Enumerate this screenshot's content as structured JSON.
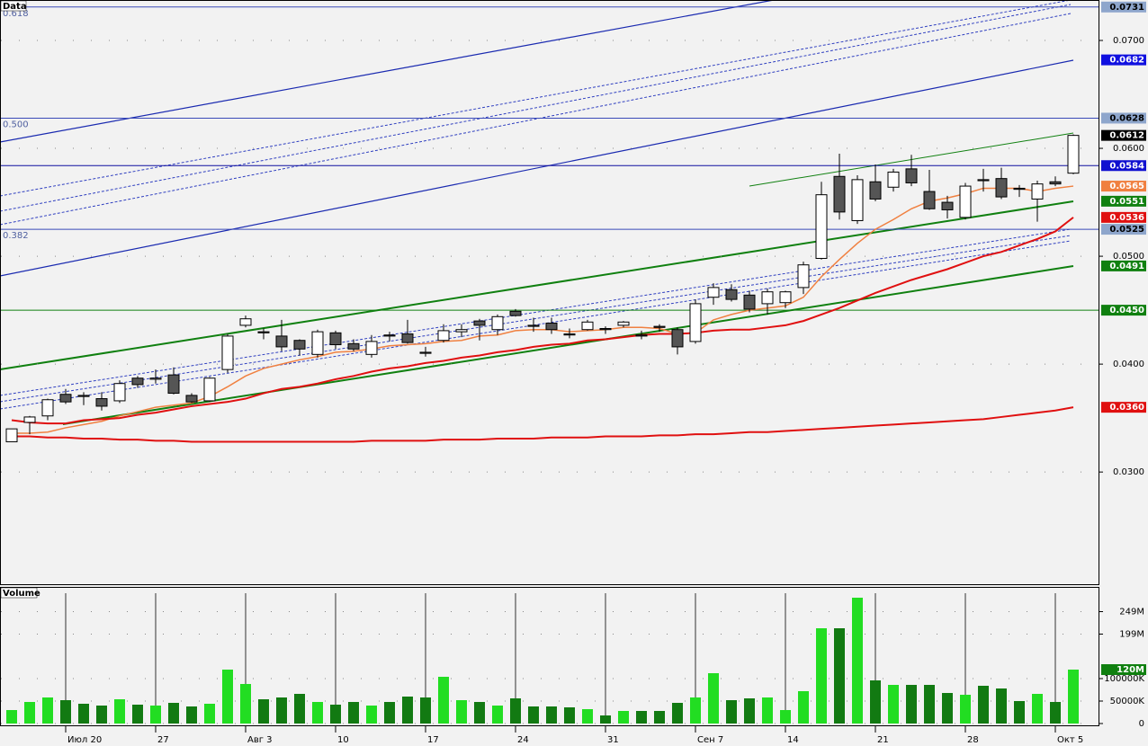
{
  "chart_data": [
    {
      "type": "candlestick",
      "title": "Data",
      "open": [
        0.0328,
        0.0346,
        0.0352,
        0.0372,
        0.0371,
        0.0368,
        0.0366,
        0.0387,
        0.0386,
        0.039,
        0.0371,
        0.0366,
        0.0395,
        0.0436,
        0.043,
        0.0426,
        0.0422,
        0.0409,
        0.0429,
        0.0419,
        0.0409,
        0.0427,
        0.0428,
        0.0411,
        0.0422,
        0.043,
        0.044,
        0.0432,
        0.0449,
        0.0436,
        0.0438,
        0.0428,
        0.0432,
        0.0433,
        0.0436,
        0.0427,
        0.0435,
        0.0432,
        0.0421,
        0.0462,
        0.0469,
        0.0464,
        0.0456,
        0.0457,
        0.0471,
        0.0498,
        0.0574,
        0.0533,
        0.0569,
        0.0564,
        0.0581,
        0.056,
        0.055,
        0.0536,
        0.0571,
        0.0572,
        0.0563,
        0.0553,
        0.0569,
        0.0577
      ],
      "high": [
        0.034,
        0.0352,
        0.0368,
        0.0377,
        0.0374,
        0.0374,
        0.0385,
        0.0389,
        0.0395,
        0.0397,
        0.0373,
        0.0388,
        0.0428,
        0.0445,
        0.0433,
        0.0441,
        0.0423,
        0.0432,
        0.0431,
        0.0423,
        0.0427,
        0.043,
        0.0441,
        0.0416,
        0.0437,
        0.0437,
        0.0442,
        0.0446,
        0.0451,
        0.0443,
        0.0443,
        0.0433,
        0.0441,
        0.0435,
        0.044,
        0.0431,
        0.0437,
        0.0434,
        0.046,
        0.0475,
        0.0474,
        0.0468,
        0.047,
        0.0468,
        0.0495,
        0.0569,
        0.0595,
        0.0575,
        0.0585,
        0.0581,
        0.0594,
        0.058,
        0.0556,
        0.0568,
        0.0581,
        0.0582,
        0.0566,
        0.057,
        0.0574,
        0.0613
      ],
      "low": [
        0.0328,
        0.0335,
        0.0348,
        0.0363,
        0.0362,
        0.0357,
        0.0364,
        0.0378,
        0.0382,
        0.0372,
        0.0364,
        0.0365,
        0.0392,
        0.0434,
        0.0423,
        0.0412,
        0.0408,
        0.0406,
        0.0414,
        0.0412,
        0.0406,
        0.0421,
        0.0419,
        0.0407,
        0.042,
        0.0425,
        0.0422,
        0.0427,
        0.0444,
        0.043,
        0.0428,
        0.0424,
        0.0431,
        0.0428,
        0.0434,
        0.0423,
        0.043,
        0.0409,
        0.0419,
        0.0455,
        0.0458,
        0.0448,
        0.0446,
        0.0452,
        0.0465,
        0.0497,
        0.0534,
        0.053,
        0.0551,
        0.056,
        0.0565,
        0.0543,
        0.0535,
        0.0534,
        0.056,
        0.0553,
        0.0555,
        0.0532,
        0.0565,
        0.0576
      ],
      "close": [
        0.034,
        0.0351,
        0.0367,
        0.0365,
        0.037,
        0.0361,
        0.0382,
        0.0381,
        0.0387,
        0.0373,
        0.0365,
        0.0387,
        0.0426,
        0.0442,
        0.0429,
        0.0416,
        0.0414,
        0.043,
        0.0418,
        0.0414,
        0.0421,
        0.0426,
        0.042,
        0.041,
        0.0431,
        0.0432,
        0.0436,
        0.0444,
        0.0445,
        0.0435,
        0.0432,
        0.0427,
        0.0439,
        0.0432,
        0.0439,
        0.0426,
        0.0434,
        0.0416,
        0.0456,
        0.0471,
        0.046,
        0.0451,
        0.0467,
        0.0467,
        0.0492,
        0.0557,
        0.0541,
        0.0571,
        0.0553,
        0.0578,
        0.0568,
        0.0544,
        0.0543,
        0.0565,
        0.057,
        0.0555,
        0.0562,
        0.0567,
        0.0567,
        0.0612
      ],
      "up_color": "#ffffff",
      "down_color": "#555555",
      "averages": [
        {
          "color": "#f08040",
          "values": [
            0.0336,
            0.0336,
            0.0337,
            0.0341,
            0.0344,
            0.0347,
            0.0352,
            0.0356,
            0.036,
            0.0362,
            0.0364,
            0.037,
            0.0379,
            0.0389,
            0.0396,
            0.04,
            0.0404,
            0.0407,
            0.0411,
            0.0412,
            0.0414,
            0.0417,
            0.0418,
            0.0419,
            0.0421,
            0.0422,
            0.0426,
            0.0427,
            0.0431,
            0.0432,
            0.0432,
            0.043,
            0.0431,
            0.0432,
            0.0434,
            0.0434,
            0.0433,
            0.0428,
            0.0429,
            0.0441,
            0.0446,
            0.045,
            0.0452,
            0.0454,
            0.0462,
            0.0481,
            0.0497,
            0.0512,
            0.0525,
            0.0534,
            0.0544,
            0.0551,
            0.0554,
            0.0558,
            0.0563,
            0.0563,
            0.0563,
            0.056,
            0.0563,
            0.0565
          ]
        },
        {
          "color": "#e01010",
          "values": [
            0.0348,
            0.0346,
            0.0345,
            0.0345,
            0.0348,
            0.0349,
            0.035,
            0.0353,
            0.0355,
            0.0358,
            0.0361,
            0.0363,
            0.0365,
            0.0368,
            0.0373,
            0.0377,
            0.0379,
            0.0382,
            0.0386,
            0.0389,
            0.0393,
            0.0396,
            0.0398,
            0.0401,
            0.0403,
            0.0406,
            0.0408,
            0.0411,
            0.0413,
            0.0416,
            0.0418,
            0.0419,
            0.0422,
            0.0423,
            0.0425,
            0.0427,
            0.0428,
            0.0428,
            0.0429,
            0.0431,
            0.0432,
            0.0432,
            0.0434,
            0.0436,
            0.044,
            0.0446,
            0.0452,
            0.0459,
            0.0466,
            0.0472,
            0.0478,
            0.0483,
            0.0488,
            0.0494,
            0.05,
            0.0504,
            0.051,
            0.0516,
            0.0523,
            0.0536
          ]
        },
        {
          "color": "#e01010",
          "values": [
            0.0333,
            0.0333,
            0.0332,
            0.0332,
            0.0331,
            0.0331,
            0.033,
            0.033,
            0.0329,
            0.0329,
            0.0328,
            0.0328,
            0.0328,
            0.0328,
            0.0328,
            0.0328,
            0.0328,
            0.0328,
            0.0328,
            0.0328,
            0.0329,
            0.0329,
            0.0329,
            0.0329,
            0.033,
            0.033,
            0.033,
            0.0331,
            0.0331,
            0.0331,
            0.0332,
            0.0332,
            0.0332,
            0.0333,
            0.0333,
            0.0333,
            0.0334,
            0.0334,
            0.0335,
            0.0335,
            0.0336,
            0.0337,
            0.0337,
            0.0338,
            0.0339,
            0.034,
            0.0341,
            0.0342,
            0.0343,
            0.0344,
            0.0345,
            0.0346,
            0.0347,
            0.0348,
            0.0349,
            0.0351,
            0.0353,
            0.0355,
            0.0357,
            0.036
          ]
        }
      ],
      "ylim": [
        0.0196,
        0.07375
      ],
      "yticks": [
        {
          "value": 0.07,
          "label": "0.0700"
        },
        {
          "value": 0.06,
          "label": "0.0600"
        },
        {
          "value": 0.05,
          "label": "0.0500"
        },
        {
          "value": 0.04,
          "label": "0.0400"
        },
        {
          "value": 0.03,
          "label": "0.0300"
        }
      ],
      "grid": true,
      "markers": [
        {
          "value": 0.0731,
          "color": "#8ea6cc",
          "text_color": "#000000",
          "line": "#3a4ab8",
          "fib": "0.618"
        },
        {
          "value": 0.0682,
          "color": "#1010e0",
          "text_color": "#ffffff"
        },
        {
          "value": 0.0628,
          "color": "#8ea6cc",
          "text_color": "#000000",
          "line": "#3a4ab8",
          "fib": "0.500"
        },
        {
          "value": 0.0612,
          "color": "#000000",
          "text_color": "#ffffff"
        },
        {
          "value": 0.0584,
          "color": "#1010d0",
          "text_color": "#ffffff",
          "line": "#1010a0"
        },
        {
          "value": 0.0565,
          "color": "#f08040",
          "text_color": "#ffffff"
        },
        {
          "value": 0.0551,
          "color": "#108010",
          "text_color": "#ffffff"
        },
        {
          "value": 0.0536,
          "color": "#e01010",
          "text_color": "#ffffff"
        },
        {
          "value": 0.0525,
          "color": "#8ea6cc",
          "text_color": "#000000",
          "line": "#3a4ab8",
          "fib": "0.382"
        },
        {
          "value": 0.0491,
          "color": "#108010",
          "text_color": "#ffffff"
        },
        {
          "value": 0.045,
          "label": "0.0450",
          "color": "#108010",
          "text_color": "#ffffff",
          "line": "#108010"
        },
        {
          "value": 0.036,
          "label": "0.0360",
          "color": "#e01010",
          "text_color": "#ffffff"
        }
      ]
    },
    {
      "type": "volume",
      "title": "Volume",
      "categories": [
        null,
        null,
        null,
        "Июл 20",
        null,
        null,
        null,
        null,
        "27",
        null,
        null,
        null,
        null,
        "Авг 3",
        null,
        null,
        null,
        null,
        "10",
        null,
        null,
        null,
        null,
        "17",
        null,
        null,
        null,
        null,
        "24",
        null,
        null,
        null,
        null,
        "31",
        null,
        null,
        null,
        null,
        "Сен 7",
        null,
        null,
        null,
        null,
        "14",
        null,
        null,
        null,
        null,
        "21",
        null,
        null,
        null,
        null,
        "28",
        null,
        null,
        null,
        null,
        "Окт 5",
        null
      ],
      "values": [
        30000000,
        48000000,
        58000000,
        52000000,
        44000000,
        40000000,
        54000000,
        42000000,
        40000000,
        46000000,
        38000000,
        44000000,
        120000000,
        88000000,
        54000000,
        58000000,
        66000000,
        48000000,
        42000000,
        48000000,
        40000000,
        48000000,
        60000000,
        58000000,
        104000000,
        52000000,
        48000000,
        40000000,
        56000000,
        38000000,
        38000000,
        36000000,
        32000000,
        18000000,
        28000000,
        28000000,
        28000000,
        46000000,
        58000000,
        112000000,
        52000000,
        56000000,
        58000000,
        30000000,
        72000000,
        212000000,
        212000000,
        280000000,
        96000000,
        86000000,
        86000000,
        86000000,
        68000000,
        64000000,
        84000000,
        78000000,
        50000000,
        66000000,
        48000000,
        120000000
      ],
      "up_color": "#22dd22",
      "down_color": "#127a12",
      "ylim": [
        0,
        300000000
      ],
      "yticks": [
        0,
        {
          "value": 50000000,
          "label": "50000K"
        },
        {
          "value": 100000000,
          "label": "100000K"
        },
        {
          "value": 199000000,
          "label": "199M"
        },
        {
          "value": 249000000,
          "label": "249M"
        }
      ],
      "last_label": "120M",
      "last_color": "#108010"
    }
  ]
}
